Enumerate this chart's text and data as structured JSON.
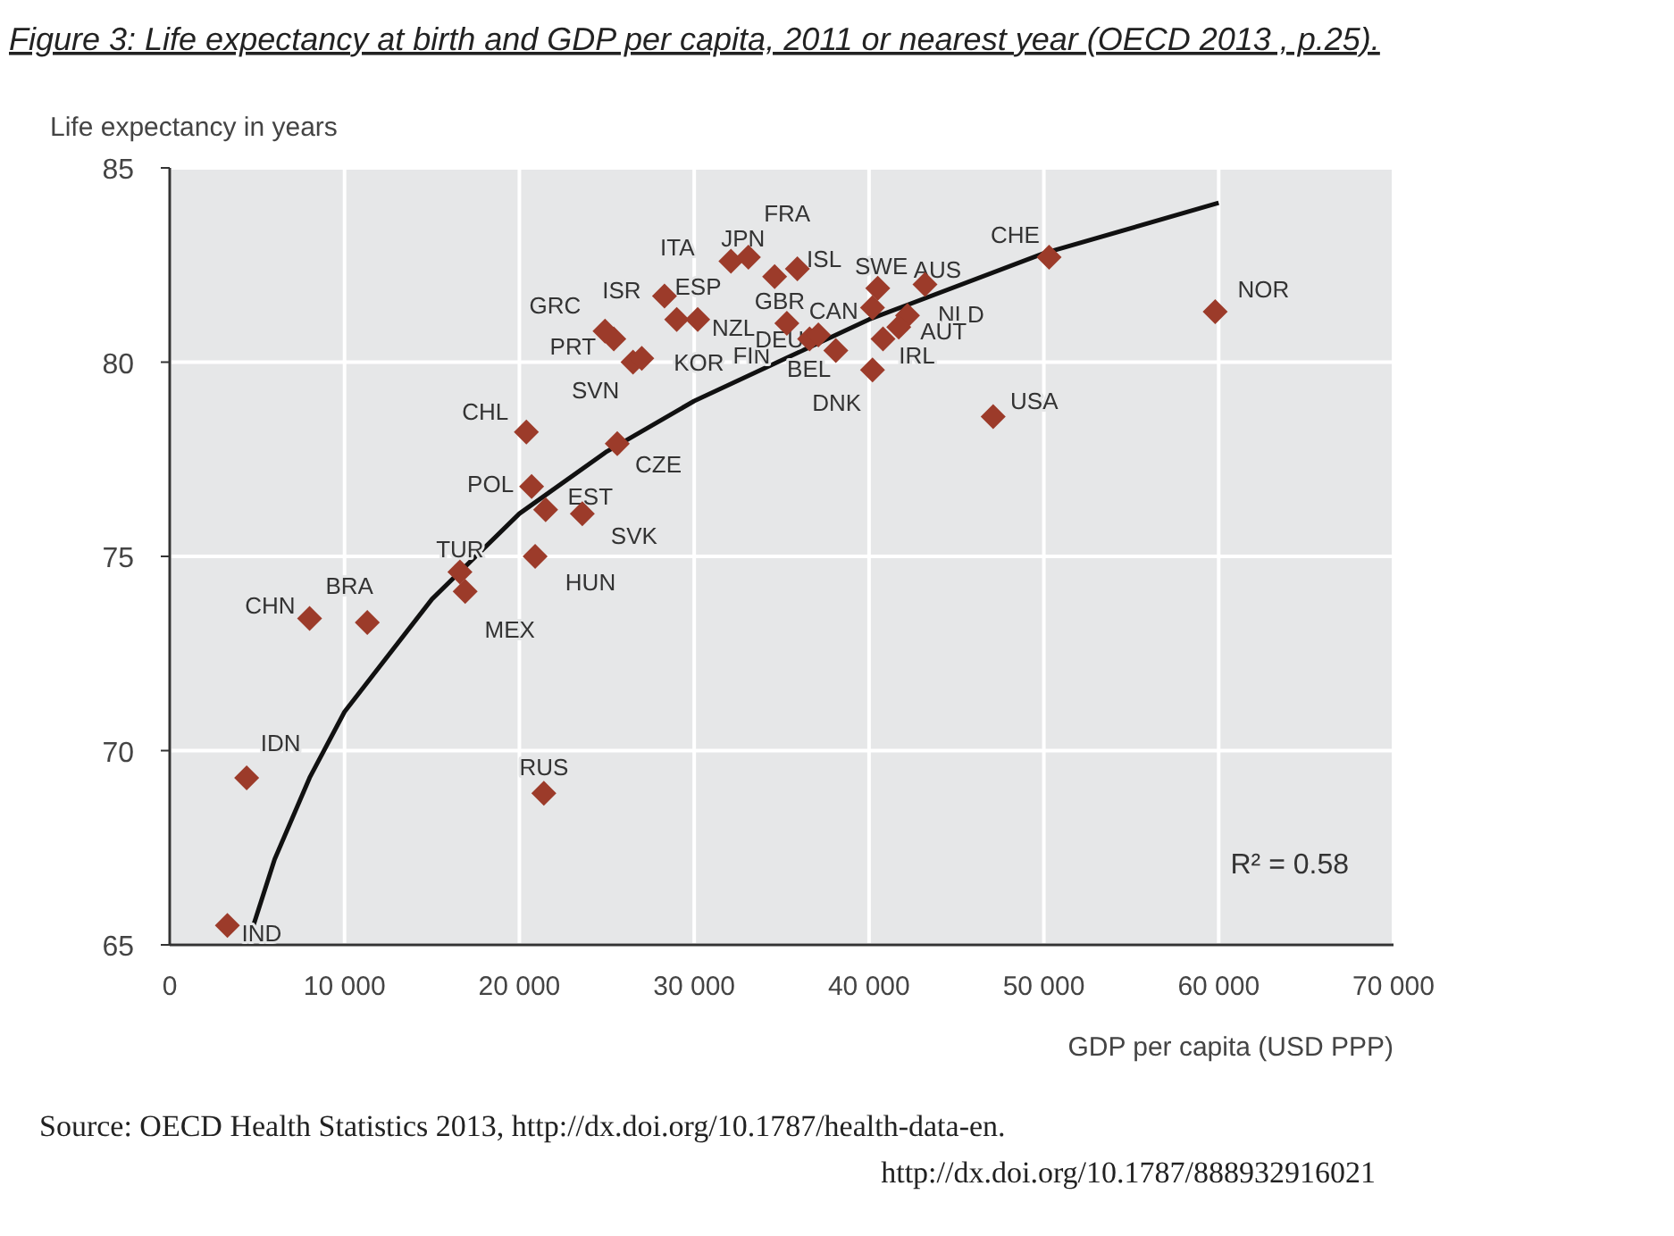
{
  "chart_data": {
    "type": "scatter",
    "title": "Figure 3: Life expectancy at birth and GDP per capita, 2011 or nearest year (OECD 2013 , p.25).",
    "xlabel": "GDP per capita (USD PPP)",
    "ylabel": "Life expectancy in years",
    "xlim": [
      0,
      70000
    ],
    "xticks": [
      0,
      {
        "value": 10000,
        "label": "10 000"
      },
      {
        "value": 20000,
        "label": "20 000"
      },
      {
        "value": 30000,
        "label": "30 000"
      },
      {
        "value": 40000,
        "label": "40 000"
      },
      {
        "value": 50000,
        "label": "50 000"
      },
      {
        "value": 60000,
        "label": "60 000"
      },
      {
        "value": 70000,
        "label": "70 000"
      }
    ],
    "ylim": [
      65,
      85
    ],
    "yticks": [
      65,
      70,
      75,
      80,
      85
    ],
    "grid": true,
    "marker": "diamond",
    "series": [
      {
        "color": "#9c3b2a",
        "x": [
          3300,
          4400,
          8000,
          11300,
          16600,
          16900,
          20400,
          20700,
          21500,
          23600,
          20900,
          21400,
          25600,
          26500,
          27000,
          25400,
          24900,
          28300,
          29000,
          30200,
          36600,
          32100,
          33100,
          34600,
          35900,
          40500,
          35300,
          40200,
          37100,
          38100,
          40200,
          43200,
          42200,
          41700,
          40800,
          50300,
          59800,
          47100
        ],
        "values": [
          65.5,
          69.3,
          73.4,
          73.3,
          74.6,
          74.1,
          78.2,
          76.8,
          76.2,
          76.1,
          75.0,
          68.9,
          77.9,
          80.0,
          80.1,
          80.6,
          80.8,
          81.7,
          81.1,
          81.1,
          80.6,
          82.6,
          82.7,
          82.2,
          82.4,
          81.9,
          81.0,
          81.4,
          80.7,
          80.3,
          79.8,
          82.0,
          81.2,
          80.9,
          80.6,
          82.7,
          81.3,
          78.6
        ]
      },
      {
        "type": "line",
        "color": "#111111",
        "marker": "none",
        "x": [
          4500,
          6000,
          8000,
          10000,
          15000,
          20000,
          25000,
          30000,
          40000,
          50000,
          60000
        ],
        "values": [
          65.1,
          67.2,
          69.3,
          71.0,
          73.9,
          76.1,
          77.7,
          79.0,
          81.1,
          82.8,
          84.1
        ]
      }
    ],
    "annotations": [
      {
        "text": "IND",
        "x": 3300,
        "y": 65.5
      },
      {
        "text": "IDN",
        "x": 4400,
        "y": 69.3
      },
      {
        "text": "CHN",
        "x": 8000,
        "y": 73.4
      },
      {
        "text": "BRA",
        "x": 11300,
        "y": 73.3
      },
      {
        "text": "TUR",
        "x": 16600,
        "y": 74.6
      },
      {
        "text": "MEX",
        "x": 16900,
        "y": 74.1
      },
      {
        "text": "CHL",
        "x": 20400,
        "y": 78.2
      },
      {
        "text": "POL",
        "x": 20700,
        "y": 76.8
      },
      {
        "text": "EST",
        "x": 21500,
        "y": 76.2
      },
      {
        "text": "SVK",
        "x": 23600,
        "y": 76.1
      },
      {
        "text": "HUN",
        "x": 20900,
        "y": 75.0
      },
      {
        "text": "RUS",
        "x": 21400,
        "y": 68.9
      },
      {
        "text": "CZE",
        "x": 25600,
        "y": 77.9
      },
      {
        "text": "SVN",
        "x": 26500,
        "y": 80.0
      },
      {
        "text": "KOR",
        "x": 27000,
        "y": 80.1
      },
      {
        "text": "PRT",
        "x": 25400,
        "y": 80.6
      },
      {
        "text": "GRC",
        "x": 24900,
        "y": 80.8
      },
      {
        "text": "ISR",
        "x": 28300,
        "y": 81.7
      },
      {
        "text": "ESP",
        "x": 29000,
        "y": 81.1
      },
      {
        "text": "NZL",
        "x": 30200,
        "y": 81.1
      },
      {
        "text": "FIN",
        "x": 36600,
        "y": 80.6
      },
      {
        "text": "ITA",
        "x": 32100,
        "y": 82.6
      },
      {
        "text": "JPN",
        "x": 33100,
        "y": 82.7
      },
      {
        "text": "FRA",
        "x": 34600,
        "y": 82.2
      },
      {
        "text": "ISL",
        "x": 35900,
        "y": 82.4
      },
      {
        "text": "SWE",
        "x": 40500,
        "y": 81.9
      },
      {
        "text": "GBR",
        "x": 35300,
        "y": 81.0
      },
      {
        "text": "CAN",
        "x": 40200,
        "y": 81.4
      },
      {
        "text": "DEU",
        "x": 37100,
        "y": 80.7
      },
      {
        "text": "BEL",
        "x": 38100,
        "y": 80.3
      },
      {
        "text": "DNK",
        "x": 40200,
        "y": 79.8
      },
      {
        "text": "AUS",
        "x": 43200,
        "y": 82.0
      },
      {
        "text": "NLD",
        "x": 42200,
        "y": 81.2
      },
      {
        "text": "AUT",
        "x": 41700,
        "y": 80.9
      },
      {
        "text": "IRL",
        "x": 40800,
        "y": 80.6
      },
      {
        "text": "CHE",
        "x": 50300,
        "y": 82.7
      },
      {
        "text": "NOR",
        "x": 59800,
        "y": 81.3
      },
      {
        "text": "USA",
        "x": 47100,
        "y": 78.6
      },
      "R² = 0.58",
      "Source: OECD Health Statistics 2013, http://dx.doi.org/10.1787/health-data-en.",
      "http://dx.doi.org/10.1787/888932916021"
    ]
  }
}
